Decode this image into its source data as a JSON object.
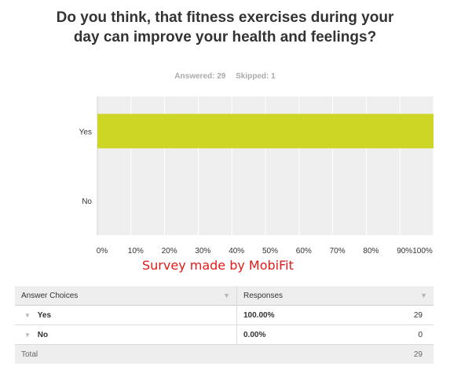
{
  "question": "Do you think, that fitness exercises during your day can improve your health and feelings?",
  "summary": {
    "answered": "Answered: 29",
    "skipped": "Skipped: 1"
  },
  "watermark": "Survey made by MobiFit",
  "chart_data": {
    "type": "bar",
    "orientation": "horizontal",
    "categories": [
      "Yes",
      "No"
    ],
    "values": [
      100,
      0
    ],
    "xlim": [
      0,
      100
    ],
    "x_ticks": [
      "0%",
      "10%",
      "20%",
      "30%",
      "40%",
      "50%",
      "60%",
      "70%",
      "80%",
      "90%",
      "100%"
    ],
    "bar_color": "#cdd625",
    "plot_background": "#efefef",
    "grid": true
  },
  "table": {
    "headers": [
      "Answer Choices",
      "Responses"
    ],
    "rows": [
      {
        "choice": "Yes",
        "percent": "100.00%",
        "count": "29"
      },
      {
        "choice": "No",
        "percent": "0.00%",
        "count": "0"
      }
    ],
    "total_label": "Total",
    "total_value": "29"
  }
}
